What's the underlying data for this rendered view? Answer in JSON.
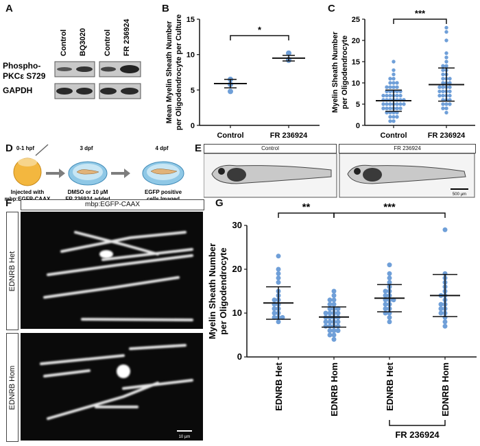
{
  "panel_letters": {
    "A": "A",
    "B": "B",
    "C": "C",
    "D": "D",
    "E": "E",
    "F": "F",
    "G": "G"
  },
  "panel_a": {
    "lanes": [
      "Control",
      "BQ3020",
      "Control",
      "FR 236924"
    ],
    "row_labels": [
      "Phospho-",
      "PKCε S729",
      "GAPDH"
    ]
  },
  "panel_d": {
    "stages": [
      {
        "time": "0-1 hpf",
        "caption": [
          "Injected with",
          "mbp:EGFP-CAAX"
        ]
      },
      {
        "time": "3 dpf",
        "caption": [
          "DMSO or 10 µM",
          "FR 236924 added"
        ]
      },
      {
        "time": "4 dpf",
        "caption": [
          "EGFP positive",
          "cells Imaged"
        ]
      }
    ]
  },
  "panel_e": {
    "left": "Control",
    "right": "FR 236924",
    "scale": "500 µm"
  },
  "panel_f": {
    "title": "mbp:EGFP-CAAX",
    "top": "EDNRB Het",
    "bottom": "EDNRB Hom",
    "scale": "10 µm"
  },
  "chart_data": [
    {
      "id": "B",
      "type": "scatter",
      "ylabel": "Mean Myelin Sheath Number per Oligodendrocyte per Culture",
      "categories": [
        "Control",
        "FR 236924"
      ],
      "ylim": [
        0,
        15
      ],
      "yticks": [
        0,
        5,
        10,
        15
      ],
      "series": [
        {
          "points": [
            [
              0,
              6.5
            ],
            [
              0,
              5.8
            ],
            [
              0,
              4.8
            ]
          ],
          "mean": 5.9,
          "sd": 0.6
        },
        {
          "points": [
            [
              1,
              10.2
            ],
            [
              1,
              9.3
            ],
            [
              1,
              9.2
            ]
          ],
          "mean": 9.5,
          "sd": 0.4
        }
      ],
      "significance": [
        {
          "from": 0,
          "to": 1,
          "label": "*"
        }
      ]
    },
    {
      "id": "C",
      "type": "scatter",
      "ylabel": "Myelin Sheath Number per Oligodendrocyte",
      "categories": [
        "Control",
        "FR 236924"
      ],
      "ylim": [
        0,
        25
      ],
      "yticks": [
        0,
        5,
        10,
        15,
        20,
        25
      ],
      "series": [
        {
          "points": [
            [
              0,
              15
            ],
            [
              0,
              13
            ],
            [
              0,
              12
            ],
            [
              0,
              11
            ],
            [
              0,
              11
            ],
            [
              0,
              10
            ],
            [
              0,
              10
            ],
            [
              0,
              10
            ],
            [
              0,
              9
            ],
            [
              0,
              9
            ],
            [
              0,
              9
            ],
            [
              0,
              9
            ],
            [
              0,
              8
            ],
            [
              0,
              8
            ],
            [
              0,
              8
            ],
            [
              0,
              8
            ],
            [
              0,
              8
            ],
            [
              0,
              7
            ],
            [
              0,
              7
            ],
            [
              0,
              7
            ],
            [
              0,
              7
            ],
            [
              0,
              7
            ],
            [
              0,
              7
            ],
            [
              0,
              6
            ],
            [
              0,
              6
            ],
            [
              0,
              6
            ],
            [
              0,
              6
            ],
            [
              0,
              6
            ],
            [
              0,
              6
            ],
            [
              0,
              6
            ],
            [
              0,
              5
            ],
            [
              0,
              5
            ],
            [
              0,
              5
            ],
            [
              0,
              5
            ],
            [
              0,
              5
            ],
            [
              0,
              5
            ],
            [
              0,
              5
            ],
            [
              0,
              4
            ],
            [
              0,
              4
            ],
            [
              0,
              4
            ],
            [
              0,
              4
            ],
            [
              0,
              4
            ],
            [
              0,
              4
            ],
            [
              0,
              3
            ],
            [
              0,
              3
            ],
            [
              0,
              3
            ],
            [
              0,
              3
            ],
            [
              0,
              2
            ],
            [
              0,
              2
            ],
            [
              0,
              2
            ],
            [
              0,
              1
            ],
            [
              0,
              1
            ]
          ],
          "mean": 5.8,
          "sd": 2.5
        },
        {
          "points": [
            [
              1,
              23
            ],
            [
              1,
              22
            ],
            [
              1,
              20
            ],
            [
              1,
              17
            ],
            [
              1,
              16
            ],
            [
              1,
              15
            ],
            [
              1,
              14
            ],
            [
              1,
              14
            ],
            [
              1,
              13
            ],
            [
              1,
              13
            ],
            [
              1,
              12
            ],
            [
              1,
              12
            ],
            [
              1,
              11
            ],
            [
              1,
              11
            ],
            [
              1,
              11
            ],
            [
              1,
              10
            ],
            [
              1,
              10
            ],
            [
              1,
              10
            ],
            [
              1,
              9
            ],
            [
              1,
              9
            ],
            [
              1,
              9
            ],
            [
              1,
              9
            ],
            [
              1,
              8
            ],
            [
              1,
              8
            ],
            [
              1,
              8
            ],
            [
              1,
              8
            ],
            [
              1,
              7
            ],
            [
              1,
              7
            ],
            [
              1,
              7
            ],
            [
              1,
              7
            ],
            [
              1,
              6
            ],
            [
              1,
              6
            ],
            [
              1,
              6
            ],
            [
              1,
              5
            ],
            [
              1,
              5
            ],
            [
              1,
              5
            ],
            [
              1,
              4
            ],
            [
              1,
              4
            ],
            [
              1,
              3
            ]
          ],
          "mean": 9.6,
          "sd": 3.9
        }
      ],
      "significance": [
        {
          "from": 0,
          "to": 1,
          "label": "***"
        }
      ]
    },
    {
      "id": "G",
      "type": "scatter",
      "ylabel": "Myelin Sheath Number per Oligodendrocyte",
      "categories": [
        "EDNRB Het",
        "EDNRB Hom",
        "EDNRB Het",
        "EDNRB Hom"
      ],
      "group_label": "FR 236924",
      "ylim": [
        0,
        30
      ],
      "yticks": [
        0,
        10,
        20,
        30
      ],
      "series": [
        {
          "points": [
            [
              0,
              23
            ],
            [
              0,
              20
            ],
            [
              0,
              19
            ],
            [
              0,
              18
            ],
            [
              0,
              17
            ],
            [
              0,
              15
            ],
            [
              0,
              14
            ],
            [
              0,
              13
            ],
            [
              0,
              13
            ],
            [
              0,
              12
            ],
            [
              0,
              12
            ],
            [
              0,
              11
            ],
            [
              0,
              11
            ],
            [
              0,
              10
            ],
            [
              0,
              10
            ],
            [
              0,
              9
            ],
            [
              0,
              9
            ],
            [
              0,
              9
            ],
            [
              0,
              8
            ]
          ],
          "mean": 12.3,
          "sd": 3.7
        },
        {
          "points": [
            [
              1,
              15
            ],
            [
              1,
              14
            ],
            [
              1,
              13
            ],
            [
              1,
              13
            ],
            [
              1,
              12
            ],
            [
              1,
              12
            ],
            [
              1,
              11
            ],
            [
              1,
              11
            ],
            [
              1,
              11
            ],
            [
              1,
              10
            ],
            [
              1,
              10
            ],
            [
              1,
              10
            ],
            [
              1,
              10
            ],
            [
              1,
              9
            ],
            [
              1,
              9
            ],
            [
              1,
              9
            ],
            [
              1,
              9
            ],
            [
              1,
              8
            ],
            [
              1,
              8
            ],
            [
              1,
              8
            ],
            [
              1,
              8
            ],
            [
              1,
              7
            ],
            [
              1,
              7
            ],
            [
              1,
              7
            ],
            [
              1,
              7
            ],
            [
              1,
              6
            ],
            [
              1,
              6
            ],
            [
              1,
              6
            ],
            [
              1,
              5
            ],
            [
              1,
              5
            ],
            [
              1,
              4
            ]
          ],
          "mean": 9.1,
          "sd": 2.3
        },
        {
          "points": [
            [
              2,
              21
            ],
            [
              2,
              19
            ],
            [
              2,
              18
            ],
            [
              2,
              17
            ],
            [
              2,
              16
            ],
            [
              2,
              15
            ],
            [
              2,
              15
            ],
            [
              2,
              14
            ],
            [
              2,
              14
            ],
            [
              2,
              13
            ],
            [
              2,
              13
            ],
            [
              2,
              13
            ],
            [
              2,
              12
            ],
            [
              2,
              12
            ],
            [
              2,
              11
            ],
            [
              2,
              11
            ],
            [
              2,
              10
            ],
            [
              2,
              10
            ],
            [
              2,
              9
            ],
            [
              2,
              8
            ]
          ],
          "mean": 13.4,
          "sd": 3.1
        },
        {
          "points": [
            [
              3,
              29
            ],
            [
              3,
              19
            ],
            [
              3,
              18
            ],
            [
              3,
              17
            ],
            [
              3,
              16
            ],
            [
              3,
              15
            ],
            [
              3,
              14
            ],
            [
              3,
              14
            ],
            [
              3,
              13
            ],
            [
              3,
              12
            ],
            [
              3,
              12
            ],
            [
              3,
              11
            ],
            [
              3,
              11
            ],
            [
              3,
              10
            ],
            [
              3,
              10
            ],
            [
              3,
              9
            ],
            [
              3,
              8
            ],
            [
              3,
              7
            ]
          ],
          "mean": 14.0,
          "sd": 4.8
        }
      ],
      "significance": [
        {
          "from": 0,
          "to": 1,
          "label": "**"
        },
        {
          "from": 1,
          "to": 3,
          "label": "***"
        }
      ]
    }
  ],
  "colors": {
    "dot": "#6f9fd8",
    "axis": "#111111",
    "bg": "#ffffff"
  }
}
